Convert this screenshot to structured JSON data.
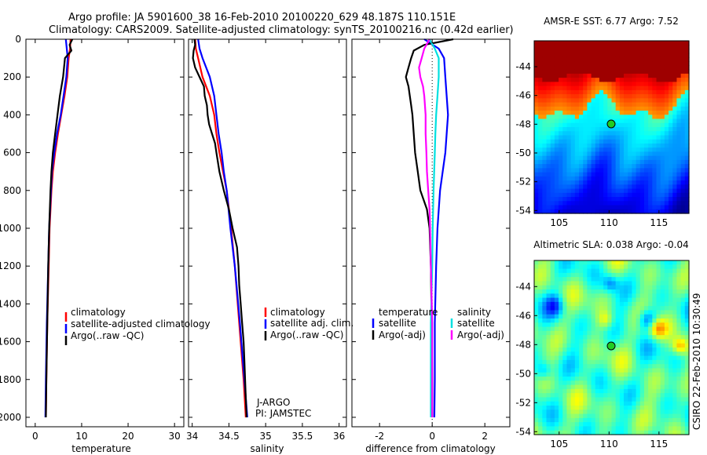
{
  "title": {
    "line1": "Argo profile: JA 5901600_38 16-Feb-2010 20100220_629 48.187S 110.151E",
    "line2": "Climatology: CARS2009. Satellite-adjusted climatology: synTS_20100216.nc (0.42d earlier)"
  },
  "colors": {
    "climatology": "#ff0000",
    "satellite": "#0000ff",
    "argo": "#000000",
    "cyan": "#00e0e0",
    "magenta": "#ff00ff"
  },
  "chart_data": [
    {
      "type": "line",
      "id": "temperature",
      "xlabel": "temperature",
      "ylabel": "",
      "xlim": [
        -2,
        32
      ],
      "ylim": [
        2050,
        0
      ],
      "xticks": [
        0,
        10,
        20,
        30
      ],
      "xtick_labels": [
        "0",
        "10",
        "20",
        "30"
      ],
      "yticks": [
        0,
        200,
        400,
        600,
        800,
        1000,
        1200,
        1400,
        1600,
        1800,
        2000
      ],
      "ytick_labels": [
        "0",
        "200",
        "400",
        "600",
        "800",
        "1000",
        "1200",
        "1400",
        "1600",
        "1800",
        "2000"
      ],
      "legend": [
        "climatology",
        "satellite-adjusted climatology",
        "Argo(..raw -QC)"
      ],
      "series": [
        {
          "name": "climatology",
          "color": "#ff0000",
          "depth": [
            0,
            50,
            100,
            200,
            300,
            400,
            500,
            600,
            700,
            800,
            1000,
            1200,
            1500,
            1800,
            2000
          ],
          "values": [
            7.6,
            7.5,
            7.2,
            6.9,
            6.3,
            5.6,
            4.9,
            4.3,
            3.8,
            3.5,
            3.1,
            2.9,
            2.6,
            2.4,
            2.3
          ]
        },
        {
          "name": "satellite-adjusted climatology",
          "color": "#0000ff",
          "depth": [
            0,
            50,
            100,
            200,
            300,
            400,
            500,
            600,
            700,
            800,
            1000,
            1200,
            1500,
            1800,
            2000
          ],
          "values": [
            6.6,
            6.8,
            7.0,
            6.7,
            6.1,
            5.5,
            4.7,
            4.1,
            3.6,
            3.4,
            3.0,
            2.8,
            2.5,
            2.3,
            2.2
          ]
        },
        {
          "name": "Argo(..raw -QC)",
          "color": "#000000",
          "depth": [
            0,
            30,
            60,
            100,
            200,
            300,
            400,
            500,
            600,
            700,
            800,
            1000,
            1200,
            1500,
            1800,
            2000
          ],
          "values": [
            8.0,
            7.4,
            7.8,
            6.4,
            6.0,
            5.3,
            4.8,
            4.3,
            3.8,
            3.5,
            3.3,
            3.0,
            2.8,
            2.6,
            2.4,
            2.3
          ]
        }
      ]
    },
    {
      "type": "line",
      "id": "salinity",
      "xlabel": "salinity",
      "ylabel": "",
      "xlim": [
        33.95,
        36.1
      ],
      "ylim": [
        2050,
        0
      ],
      "xticks": [
        34,
        34.5,
        35,
        35.5,
        36
      ],
      "xtick_labels": [
        "34",
        "34.5",
        "35",
        "35.5",
        "36"
      ],
      "legend": [
        "climatology",
        "satellite adj. clim.",
        "Argo(..raw -QC)"
      ],
      "annotation": [
        "J-ARGO",
        "PI: JAMSTEC"
      ],
      "series": [
        {
          "name": "climatology",
          "color": "#ff0000",
          "depth": [
            0,
            50,
            100,
            200,
            300,
            400,
            500,
            600,
            700,
            800,
            1000,
            1200,
            1500,
            1800,
            2000
          ],
          "values": [
            34.04,
            34.05,
            34.08,
            34.14,
            34.24,
            34.3,
            34.33,
            34.37,
            34.42,
            34.47,
            34.53,
            34.58,
            34.64,
            34.7,
            34.73
          ]
        },
        {
          "name": "satellite adj. clim.",
          "color": "#0000ff",
          "depth": [
            0,
            50,
            100,
            200,
            300,
            400,
            500,
            600,
            700,
            800,
            1000,
            1200,
            1500,
            1800,
            2000
          ],
          "values": [
            34.08,
            34.1,
            34.14,
            34.24,
            34.3,
            34.33,
            34.36,
            34.4,
            34.43,
            34.47,
            34.52,
            34.58,
            34.65,
            34.71,
            34.75
          ]
        },
        {
          "name": "Argo(..raw -QC)",
          "color": "#000000",
          "depth": [
            0,
            30,
            60,
            100,
            150,
            200,
            250,
            300,
            350,
            400,
            450,
            500,
            550,
            600,
            700,
            800,
            900,
            1000,
            1100,
            1200,
            1300,
            1400,
            1500,
            1600,
            1700,
            1800,
            1900,
            2000
          ],
          "values": [
            34.03,
            34.04,
            34.02,
            34.01,
            34.04,
            34.1,
            34.16,
            34.17,
            34.2,
            34.21,
            34.23,
            34.27,
            34.31,
            34.33,
            34.37,
            34.43,
            34.5,
            34.55,
            34.61,
            34.63,
            34.64,
            34.66,
            34.68,
            34.7,
            34.71,
            34.72,
            34.73,
            34.74
          ]
        }
      ]
    },
    {
      "type": "line",
      "id": "difference",
      "xlabel": "difference from climatology",
      "ylabel": "",
      "xlim": [
        -3.05,
        2.95
      ],
      "ylim": [
        2050,
        0
      ],
      "xticks": [
        -2,
        0,
        2
      ],
      "xtick_labels": [
        "-2",
        "0",
        "2"
      ],
      "legend_headers": [
        "temperature",
        "salinity"
      ],
      "legend": [
        "satellite",
        "Argo(-adj)",
        "satellite",
        "Argo(-adj)"
      ],
      "series": [
        {
          "name": "temperature satellite",
          "color": "#0000ff",
          "depth": [
            0,
            50,
            100,
            200,
            300,
            400,
            500,
            600,
            800,
            1000,
            1200,
            1500,
            1800,
            2000
          ],
          "values": [
            -0.3,
            0.25,
            0.45,
            0.5,
            0.55,
            0.6,
            0.55,
            0.5,
            0.3,
            0.2,
            0.15,
            0.1,
            0.1,
            0.08
          ]
        },
        {
          "name": "temperature Argo(-adj)",
          "color": "#000000",
          "depth": [
            0,
            30,
            60,
            100,
            150,
            200,
            250,
            300,
            350,
            400,
            500,
            600,
            700,
            800,
            900,
            1000,
            1200,
            1500,
            1800,
            2000
          ],
          "values": [
            0.8,
            -0.3,
            -0.7,
            -0.8,
            -0.9,
            -1.0,
            -0.9,
            -0.85,
            -0.8,
            -0.75,
            -0.7,
            -0.65,
            -0.55,
            -0.45,
            -0.2,
            -0.1,
            -0.05,
            -0.02,
            0.0,
            0.0
          ]
        },
        {
          "name": "salinity satellite",
          "color": "#00e0e0",
          "depth": [
            0,
            50,
            100,
            200,
            300,
            400,
            500,
            600,
            800,
            1000,
            1200,
            1500,
            1800,
            2000
          ],
          "values": [
            -0.1,
            0.1,
            0.25,
            0.25,
            0.2,
            0.15,
            0.12,
            0.1,
            0.05,
            0.02,
            0.0,
            -0.05,
            -0.05,
            -0.05
          ]
        },
        {
          "name": "salinity Argo(-adj)",
          "color": "#ff00ff",
          "depth": [
            0,
            50,
            100,
            150,
            200,
            250,
            300,
            400,
            500,
            600,
            700,
            800,
            900,
            1000,
            1200,
            1500,
            1800,
            2000
          ],
          "values": [
            -0.1,
            -0.3,
            -0.4,
            -0.5,
            -0.45,
            -0.35,
            -0.3,
            -0.25,
            -0.25,
            -0.22,
            -0.2,
            -0.15,
            -0.1,
            -0.08,
            -0.05,
            0.0,
            0.0,
            0.0
          ]
        }
      ]
    },
    {
      "type": "heatmap",
      "id": "sst-map",
      "title": "AMSR-E SST: 6.77 Argo: 7.52",
      "xlim": [
        102.5,
        118
      ],
      "ylim": [
        -54.2,
        -42.2
      ],
      "xticks": [
        105,
        110,
        115
      ],
      "xtick_labels": [
        "105",
        "110",
        "115"
      ],
      "yticks": [
        -44,
        -46,
        -48,
        -50,
        -52,
        -54
      ],
      "ytick_labels": [
        "-44",
        "-46",
        "-48",
        "-50",
        "-52",
        "-54"
      ],
      "marker": [
        110.15,
        -48.19
      ]
    },
    {
      "type": "heatmap",
      "id": "sla-map",
      "title": "Altimetric SLA: 0.038 Argo: -0.04",
      "xlim": [
        102.5,
        118
      ],
      "ylim": [
        -54.2,
        -42.2
      ],
      "xticks": [
        105,
        110,
        115
      ],
      "xtick_labels": [
        "105",
        "110",
        "115"
      ],
      "yticks": [
        -44,
        -46,
        -48,
        -50,
        -52,
        -54
      ],
      "ytick_labels": [
        "-44",
        "-46",
        "-48",
        "-50",
        "-52",
        "-54"
      ],
      "marker": [
        110.15,
        -48.19
      ],
      "side_label": "CSIRO 22-Feb-2010 10:30:49"
    }
  ]
}
